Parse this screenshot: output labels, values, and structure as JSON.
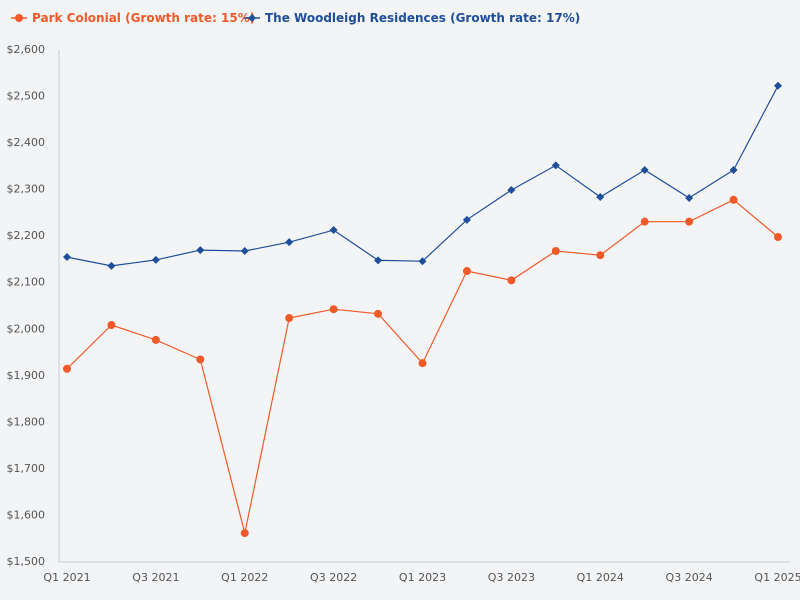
{
  "chart_data": {
    "type": "line",
    "title": "",
    "xlabel": "",
    "ylabel": "",
    "ylim": [
      1500,
      2600
    ],
    "yticks": [
      "$1,500",
      "$1,600",
      "$1,700",
      "$1,800",
      "$1,900",
      "$2,000",
      "$2,100",
      "$2,200",
      "$2,300",
      "$2,400",
      "$2,500",
      "$2,600"
    ],
    "ytick_values": [
      1500,
      1600,
      1700,
      1800,
      1900,
      2000,
      2100,
      2200,
      2300,
      2400,
      2500,
      2600
    ],
    "categories": [
      "Q1 2021",
      "Q2 2021",
      "Q3 2021",
      "Q4 2021",
      "Q1 2022",
      "Q2 2022",
      "Q3 2022",
      "Q4 2022",
      "Q1 2023",
      "Q2 2023",
      "Q3 2023",
      "Q4 2023",
      "Q1 2024",
      "Q2 2024",
      "Q3 2024",
      "Q4 2024",
      "Q1 2025"
    ],
    "xtick_labels": [
      "Q1 2021",
      "Q3 2021",
      "Q1 2022",
      "Q3 2022",
      "Q1 2023",
      "Q3 2023",
      "Q1 2024",
      "Q3 2024",
      "Q1 2025"
    ],
    "xtick_indices": [
      0,
      2,
      4,
      6,
      8,
      10,
      12,
      14,
      16
    ],
    "legend_position": "top-left",
    "series": [
      {
        "name": "Park Colonial (Growth rate: 15%)",
        "color": "#f05a28",
        "marker": "circle",
        "values": [
          1913,
          2007,
          1975,
          1933,
          1560,
          2022,
          2041,
          2031,
          1925,
          2123,
          2103,
          2166,
          2157,
          2229,
          2229,
          2276,
          2196
        ]
      },
      {
        "name": "The Woodleigh Residences (Growth rate: 17%)",
        "color": "#1f4e9a",
        "marker": "diamond",
        "values": [
          2153,
          2134,
          2147,
          2168,
          2166,
          2185,
          2211,
          2146,
          2144,
          2233,
          2297,
          2350,
          2282,
          2340,
          2280,
          2340,
          2521
        ]
      }
    ]
  }
}
